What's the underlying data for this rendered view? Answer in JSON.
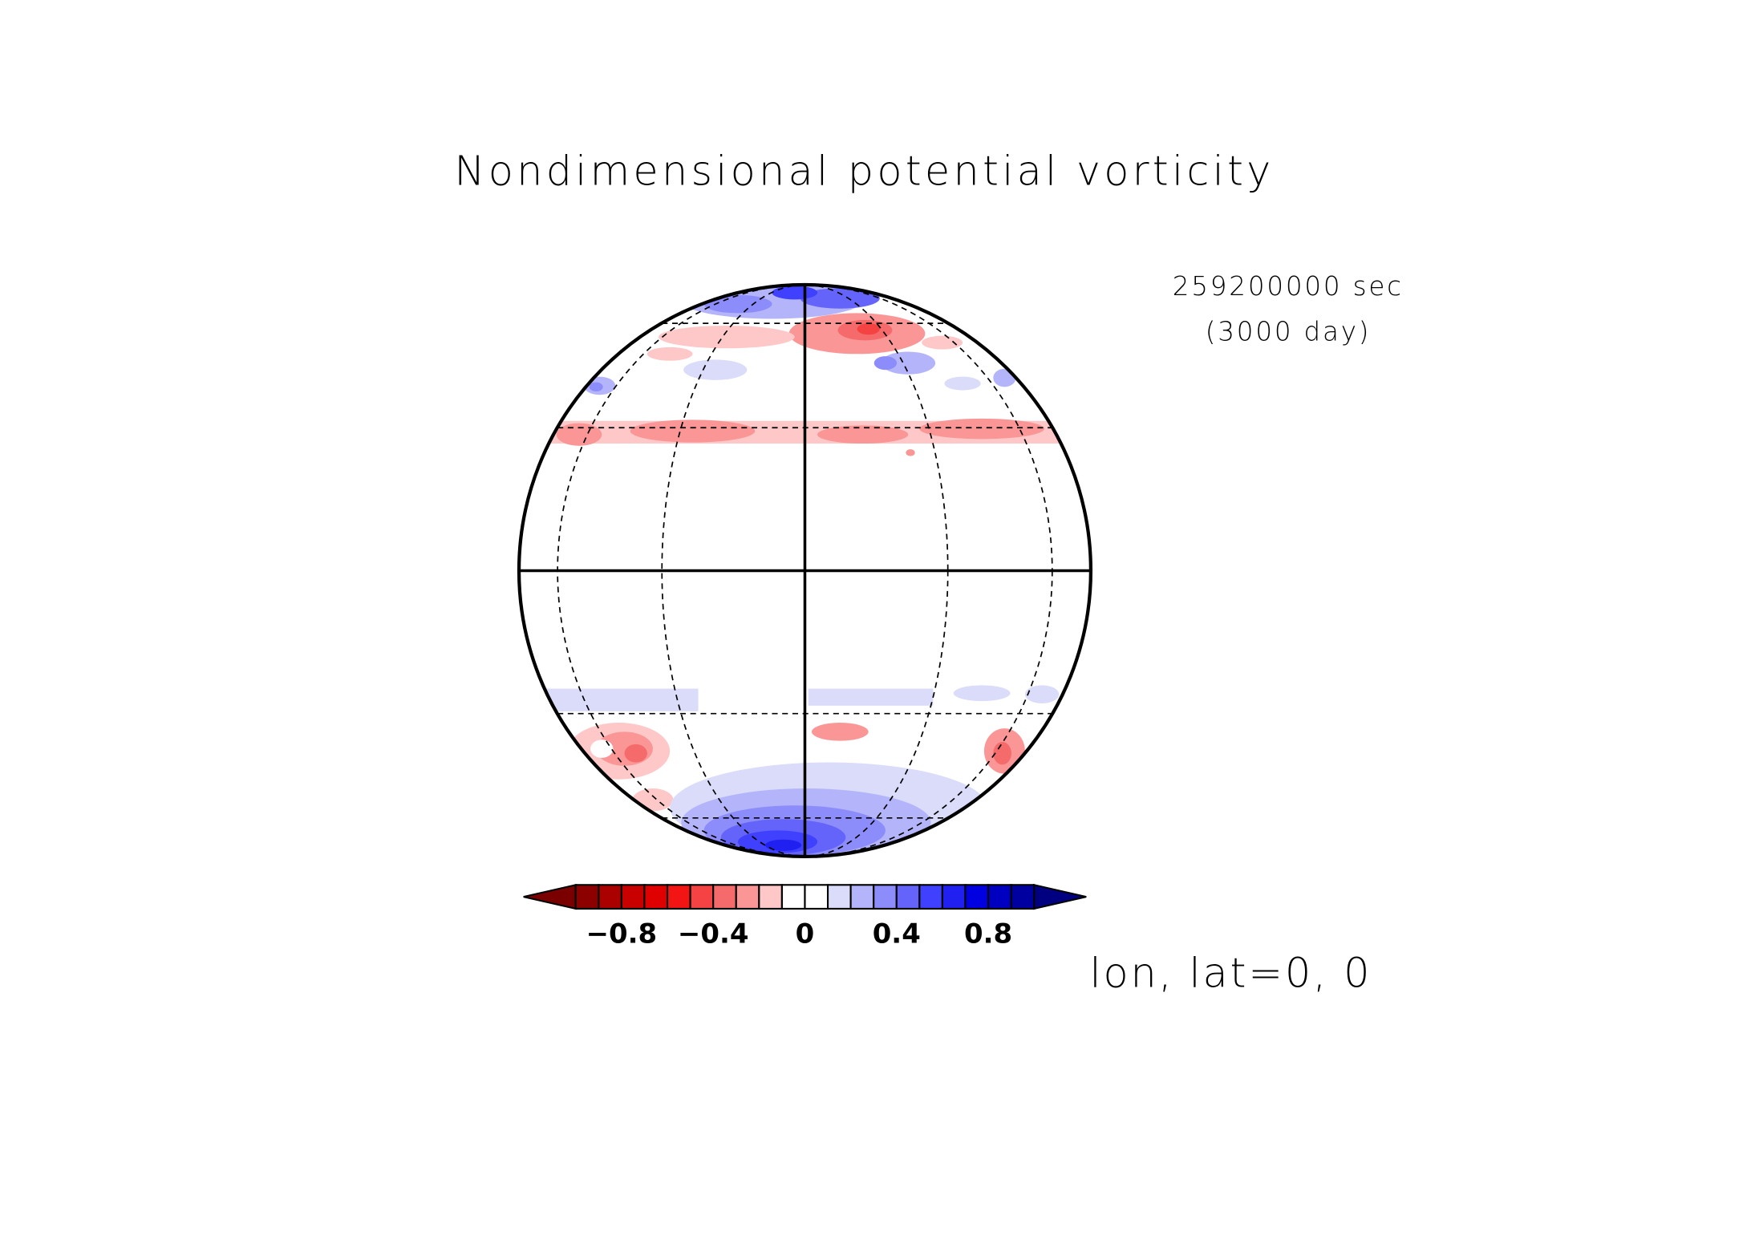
{
  "chart_data": {
    "type": "heatmap",
    "title": "Nondimensional potential vorticity",
    "time_seconds": "259200000 sec",
    "time_days": "(3000 day)",
    "projection_label": "lon, lat=0, 0",
    "projection_center": {
      "lon": 0,
      "lat": 0
    },
    "graticule": {
      "latitudes": [
        -60,
        -30,
        0,
        30,
        60
      ],
      "longitudes": [
        -60,
        -30,
        0,
        30,
        60
      ]
    },
    "colorbar": {
      "levels": [
        -1.0,
        -0.9,
        -0.8,
        -0.7,
        -0.6,
        -0.5,
        -0.4,
        -0.3,
        -0.2,
        -0.1,
        0,
        0.1,
        0.2,
        0.3,
        0.4,
        0.5,
        0.6,
        0.7,
        0.8,
        0.9,
        1.0
      ],
      "tick_values": [
        -0.8,
        -0.4,
        0,
        0.4,
        0.8
      ],
      "tick_labels": [
        "−0.8",
        "−0.4",
        "0",
        "0.4",
        "0.8"
      ],
      "extend": "both",
      "under_color": "#7a0000",
      "over_color": "#000080",
      "colors": [
        "#8c0000",
        "#aa0000",
        "#c80000",
        "#e00000",
        "#f31414",
        "#f54343",
        "#f56a6a",
        "#fa9696",
        "#ffc8c8",
        "#ffffff",
        "#ffffff",
        "#dadcfa",
        "#b4b4fa",
        "#8c8cfa",
        "#6464fa",
        "#4040ff",
        "#2020f0",
        "#0000e0",
        "#0000c0",
        "#0000a0"
      ]
    },
    "features": [
      {
        "region": "north polar cap",
        "sign": "positive",
        "max_level": 0.7
      },
      {
        "region": "lat ~60N band near lon 0 to 25E",
        "sign": "negative",
        "min_level": -0.5
      },
      {
        "region": "lat ~40N zonal band",
        "sign": "negative",
        "min_level": -0.3
      },
      {
        "region": "lat ~30S zonal band",
        "sign": "positive",
        "max_level": 0.2
      },
      {
        "region": "lat ~40S to 55S patches",
        "sign": "negative",
        "min_level": -0.4
      },
      {
        "region": "south polar cap",
        "sign": "positive",
        "max_level": 0.8
      }
    ]
  }
}
